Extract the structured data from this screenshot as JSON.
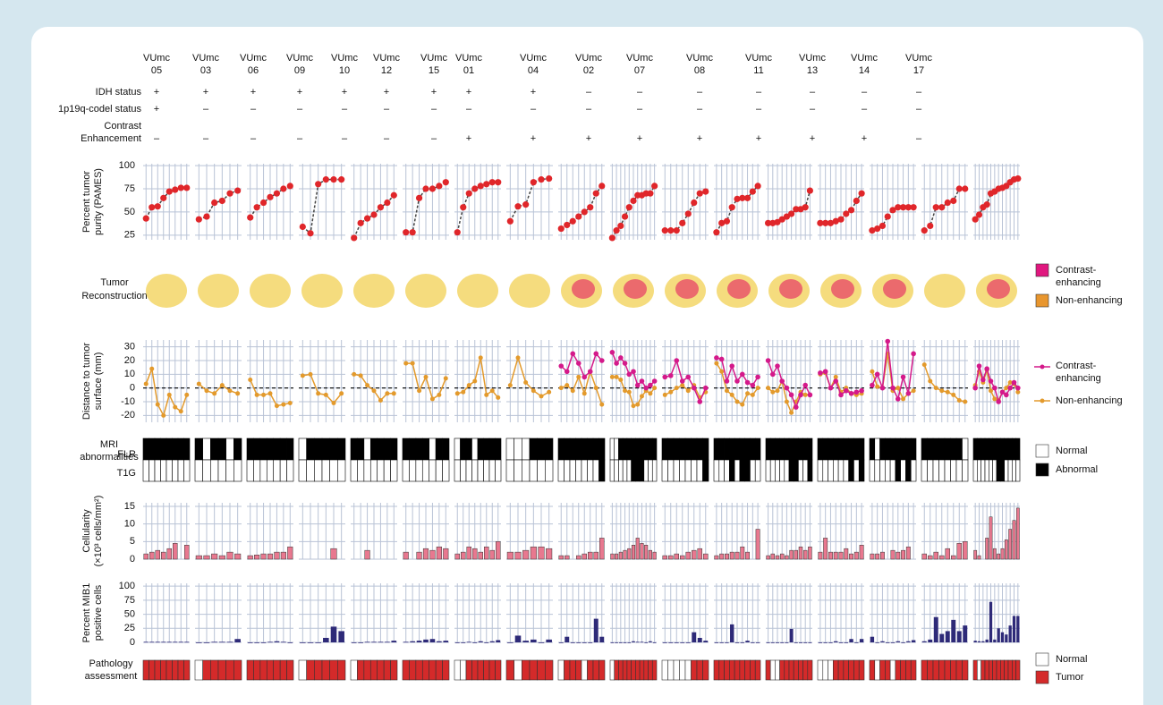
{
  "row_labels": {
    "idh": "IDH status",
    "codel": "1p19q-codel status",
    "ce": [
      "Contrast",
      "Enhancement"
    ],
    "reconstruction": [
      "Tumor",
      "Reconstruction"
    ],
    "mri": [
      "MRI",
      "abnormalities"
    ],
    "flr": "FLR",
    "t1g": "T1G",
    "pathology": [
      "Pathology",
      "assessment"
    ]
  },
  "panels": {
    "purity": {
      "label": [
        "Percent tumor",
        "purity (PAMES)"
      ],
      "ylim": [
        20,
        102
      ],
      "yticks": [
        25,
        50,
        75,
        100
      ]
    },
    "distance": {
      "label": [
        "Distance to tumor",
        "surface (mm)"
      ],
      "ylim": [
        -25,
        35
      ],
      "yticks": [
        -20,
        -10,
        0,
        10,
        20,
        30
      ]
    },
    "cellularity": {
      "label": [
        "Cellularity",
        "(×10³ cells/mm²)"
      ],
      "ylim": [
        0,
        16
      ],
      "yticks": [
        0,
        5,
        10,
        15
      ]
    },
    "mib1": {
      "label": [
        "Percent MIB1",
        "positive cells"
      ],
      "ylim": [
        0,
        105
      ],
      "yticks": [
        0,
        25,
        50,
        75,
        100
      ]
    }
  },
  "legend": {
    "ce": [
      "Contrast-",
      "enhancing"
    ],
    "ne": "Non-enhancing",
    "normal": "Normal",
    "abnormal": "Abnormal",
    "tumor": "Tumor"
  },
  "colors": {
    "purity": "#e0262a",
    "ce": "#d4198a",
    "ne": "#e39a2c",
    "cellularity": "#e8788f",
    "mib1": "#2e2a78",
    "tumor": "#d42a2a",
    "recon_ce": "#e0177f",
    "recon_ne": "#e8962e"
  },
  "patients": [
    {
      "id": [
        "VUmc",
        "05"
      ],
      "idh": "+",
      "codel": "+",
      "ce": "–",
      "purity": [
        43,
        55,
        56,
        65,
        72,
        74,
        76,
        76
      ],
      "distance_ne": [
        3,
        14,
        -12,
        -20,
        -5,
        -14,
        -17,
        -5
      ],
      "distance_ce": null,
      "flr": [
        1,
        1,
        1,
        1,
        1,
        1,
        1,
        1
      ],
      "t1g": [
        0,
        0,
        0,
        0,
        0,
        0,
        0,
        0
      ],
      "cellularity": [
        1.5,
        2,
        2.5,
        2,
        3,
        4.5,
        null,
        4
      ],
      "mib1": [
        1,
        1,
        1,
        1,
        1,
        1,
        1,
        1
      ],
      "pathology": [
        1,
        1,
        1,
        1,
        1,
        1,
        1,
        1
      ]
    },
    {
      "id": [
        "VUmc",
        "03"
      ],
      "idh": "+",
      "codel": "–",
      "ce": "–",
      "purity": [
        42,
        45,
        60,
        62,
        70,
        73
      ],
      "distance_ne": [
        3,
        -2,
        -4,
        2,
        -2,
        -4
      ],
      "distance_ce": null,
      "flr": [
        1,
        0,
        1,
        1,
        0,
        1
      ],
      "t1g": [
        0,
        0,
        0,
        0,
        0,
        0
      ],
      "cellularity": [
        1,
        1,
        1.5,
        1,
        2,
        1.5
      ],
      "mib1": [
        0,
        0,
        1,
        1,
        1,
        6
      ],
      "pathology": [
        0,
        1,
        1,
        1,
        1,
        1
      ]
    },
    {
      "id": [
        "VUmc",
        "06"
      ],
      "idh": "+",
      "codel": "–",
      "ce": "–",
      "purity": [
        44,
        55,
        60,
        66,
        70,
        75,
        78
      ],
      "distance_ne": [
        6,
        -5,
        -5,
        -4,
        -13,
        -12,
        -11
      ],
      "distance_ce": null,
      "flr": [
        1,
        1,
        1,
        1,
        1,
        1,
        1
      ],
      "t1g": [
        0,
        0,
        0,
        0,
        0,
        0,
        0
      ],
      "cellularity": [
        1,
        1.2,
        1.5,
        1.5,
        2,
        2,
        3.5
      ],
      "mib1": [
        0,
        0,
        0,
        1,
        2,
        1,
        0
      ],
      "pathology": [
        1,
        1,
        1,
        1,
        1,
        1,
        1
      ]
    },
    {
      "id": [
        "VUmc",
        "09"
      ],
      "idh": "+",
      "codel": "–",
      "ce": "–",
      "purity": [
        34,
        27,
        80,
        85,
        85,
        85
      ],
      "distance_ne": [
        9,
        10,
        -4,
        -5,
        -11,
        -4
      ],
      "distance_ce": null,
      "flr": [
        0,
        1,
        1,
        1,
        1,
        1
      ],
      "t1g": [
        0,
        0,
        0,
        0,
        0,
        0
      ],
      "cellularity": [
        null,
        null,
        null,
        null,
        3,
        null
      ],
      "mib1": [
        0,
        0,
        0,
        8,
        28,
        20
      ],
      "pathology": [
        0,
        1,
        1,
        1,
        1,
        1
      ]
    },
    {
      "id": [
        "VUmc",
        "10"
      ],
      "idh": "+",
      "codel": "–",
      "ce": "–",
      "purity": [
        22,
        38,
        43,
        47,
        55,
        60,
        68
      ],
      "distance_ne": [
        10,
        9,
        2,
        -2,
        -9,
        -4,
        -4
      ],
      "distance_ce": null,
      "flr": [
        1,
        1,
        0,
        1,
        1,
        1,
        1
      ],
      "t1g": [
        0,
        0,
        0,
        0,
        0,
        0,
        0
      ],
      "cellularity": [
        null,
        null,
        2.5,
        null,
        null,
        null,
        null
      ],
      "mib1": [
        0,
        0,
        1,
        1,
        1,
        1,
        3
      ],
      "pathology": [
        0,
        1,
        1,
        1,
        1,
        1,
        1
      ]
    },
    {
      "id": [
        "VUmc",
        "12"
      ],
      "idh": "+",
      "codel": "–",
      "ce": "–",
      "purity": [
        28,
        28,
        65,
        75,
        75,
        78,
        82
      ],
      "distance_ne": [
        18,
        18,
        -2,
        8,
        -8,
        -5,
        7
      ],
      "distance_ce": null,
      "flr": [
        1,
        1,
        1,
        1,
        0,
        1,
        1
      ],
      "t1g": [
        0,
        0,
        0,
        0,
        0,
        0,
        0
      ],
      "cellularity": [
        2,
        null,
        2,
        3,
        2.5,
        3.5,
        3
      ],
      "mib1": [
        1,
        2,
        3,
        5,
        6,
        2,
        3
      ],
      "pathology": [
        1,
        1,
        1,
        1,
        1,
        1,
        1
      ]
    },
    {
      "id": [
        "VUmc",
        "15"
      ],
      "idh": "+",
      "codel": "–",
      "ce": "–",
      "purity": [
        28,
        55,
        70,
        75,
        78,
        80,
        82,
        82
      ],
      "distance_ne": [
        -4,
        -3,
        2,
        5,
        22,
        -5,
        -2,
        -7
      ],
      "distance_ce": null,
      "flr": [
        0,
        1,
        1,
        0,
        1,
        1,
        1,
        1
      ],
      "t1g": [
        0,
        0,
        0,
        0,
        0,
        0,
        0,
        0
      ],
      "cellularity": [
        1.5,
        2,
        3.5,
        3,
        2,
        3.5,
        2.5,
        5
      ],
      "mib1": [
        0,
        0,
        1,
        0,
        2,
        0,
        2,
        4
      ],
      "pathology": [
        0,
        0,
        1,
        1,
        1,
        1,
        1,
        1
      ]
    },
    {
      "id": [
        "VUmc",
        "01"
      ],
      "idh": "+",
      "codel": "–",
      "ce": "+",
      "purity": [
        40,
        56,
        58,
        82,
        85,
        86
      ],
      "distance_ne": [
        2,
        22,
        4,
        -2,
        -6,
        -3
      ],
      "distance_ce": null,
      "flr": [
        0,
        0,
        0,
        1,
        1,
        1
      ],
      "t1g": [
        0,
        0,
        0,
        0,
        0,
        0
      ],
      "cellularity": [
        2,
        2,
        2.5,
        3.5,
        3.5,
        3
      ],
      "mib1": [
        0,
        12,
        3,
        5,
        0,
        5
      ],
      "pathology": [
        1,
        0,
        1,
        1,
        1,
        1
      ]
    },
    {
      "id": [
        "VUmc",
        "04"
      ],
      "idh": "+",
      "codel": "–",
      "ce": "+",
      "purity": [
        32,
        36,
        40,
        45,
        50,
        55,
        70,
        78
      ],
      "distance_ne": [
        0,
        2,
        -2,
        8,
        -4,
        12,
        0,
        -12
      ],
      "distance_ce": [
        16,
        12,
        25,
        18,
        8,
        12,
        25,
        20
      ],
      "flr": [
        1,
        1,
        1,
        1,
        1,
        1,
        1,
        1
      ],
      "t1g": [
        0,
        0,
        0,
        0,
        0,
        0,
        0,
        1
      ],
      "cellularity": [
        1,
        1,
        null,
        1,
        1.5,
        2,
        2,
        6
      ],
      "mib1": [
        0,
        10,
        0,
        0,
        0,
        0,
        42,
        10
      ],
      "pathology": [
        0,
        1,
        1,
        1,
        0,
        1,
        1,
        1
      ]
    },
    {
      "id": [
        "VUmc",
        "02"
      ],
      "idh": "–",
      "codel": "–",
      "ce": "+",
      "purity": [
        22,
        30,
        35,
        45,
        55,
        62,
        68,
        68,
        70,
        70,
        78
      ],
      "distance_ne": [
        8,
        8,
        6,
        -2,
        -3,
        -13,
        -12,
        -6,
        -2,
        -4,
        0
      ],
      "distance_ce": [
        26,
        18,
        22,
        18,
        10,
        12,
        2,
        5,
        0,
        2,
        5
      ],
      "flr": [
        0,
        0,
        1,
        1,
        1,
        1,
        1,
        1,
        1,
        1,
        1
      ],
      "t1g": [
        0,
        0,
        0,
        0,
        0,
        1,
        1,
        1,
        0,
        0,
        0
      ],
      "cellularity": [
        1.5,
        1.5,
        2,
        2.5,
        3,
        4,
        6,
        4.5,
        4,
        2.5,
        2
      ],
      "mib1": [
        0,
        0,
        0,
        0,
        0,
        2,
        1,
        1,
        0,
        2,
        0
      ],
      "pathology": [
        0,
        1,
        1,
        1,
        1,
        1,
        1,
        1,
        1,
        1,
        1
      ]
    },
    {
      "id": [
        "VUmc",
        "07"
      ],
      "idh": "–",
      "codel": "–",
      "ce": "+",
      "purity": [
        30,
        30,
        30,
        38,
        48,
        60,
        70,
        72
      ],
      "distance_ne": [
        -5,
        -3,
        0,
        2,
        -2,
        2,
        -7,
        -3
      ],
      "distance_ce": [
        8,
        9,
        20,
        5,
        8,
        0,
        -10,
        0
      ],
      "flr": [
        1,
        1,
        1,
        1,
        1,
        1,
        1,
        1
      ],
      "t1g": [
        0,
        0,
        0,
        0,
        0,
        0,
        0,
        1
      ],
      "cellularity": [
        1,
        1,
        1.5,
        1,
        2,
        2.5,
        3,
        1.5
      ],
      "mib1": [
        0,
        0,
        0,
        0,
        0,
        18,
        8,
        3
      ],
      "pathology": [
        0,
        0,
        0,
        0,
        0,
        1,
        1,
        1
      ]
    },
    {
      "id": [
        "VUmc",
        "08"
      ],
      "idh": "–",
      "codel": "–",
      "ce": "+",
      "purity": [
        28,
        38,
        40,
        55,
        64,
        65,
        65,
        72,
        78
      ],
      "distance_ne": [
        18,
        12,
        -2,
        -5,
        -10,
        -12,
        -4,
        -5,
        0
      ],
      "distance_ce": [
        22,
        21,
        5,
        16,
        5,
        10,
        4,
        2,
        8
      ],
      "flr": [
        1,
        1,
        1,
        1,
        1,
        1,
        1,
        1,
        1
      ],
      "t1g": [
        0,
        0,
        0,
        1,
        0,
        1,
        1,
        0,
        0
      ],
      "cellularity": [
        1,
        1.5,
        1.5,
        2,
        2,
        3.5,
        2,
        null,
        8.5
      ],
      "mib1": [
        0,
        0,
        0,
        32,
        0,
        0,
        3,
        0,
        0
      ],
      "pathology": [
        1,
        1,
        1,
        1,
        1,
        1,
        1,
        1,
        1
      ]
    },
    {
      "id": [
        "VUmc",
        "11"
      ],
      "idh": "–",
      "codel": "–",
      "ce": "+",
      "purity": [
        38,
        38,
        39,
        42,
        45,
        48,
        53,
        53,
        55,
        73
      ],
      "distance_ne": [
        0,
        -3,
        -2,
        5,
        -10,
        -18,
        -10,
        -3,
        -5,
        -5
      ],
      "distance_ce": [
        20,
        10,
        16,
        5,
        0,
        -5,
        -14,
        -5,
        2,
        -5
      ],
      "flr": [
        1,
        1,
        1,
        1,
        1,
        1,
        1,
        1,
        1,
        1
      ],
      "t1g": [
        0,
        0,
        0,
        0,
        0,
        1,
        1,
        0,
        0,
        1
      ],
      "cellularity": [
        1,
        1.5,
        1,
        1.5,
        1,
        2.5,
        2.5,
        3.5,
        2.5,
        3.5
      ],
      "mib1": [
        0,
        0,
        0,
        0,
        0,
        24,
        0,
        0,
        0,
        0
      ],
      "pathology": [
        1,
        0,
        0,
        1,
        1,
        1,
        1,
        1,
        1,
        1
      ]
    },
    {
      "id": [
        "VUmc",
        "13"
      ],
      "idh": "–",
      "codel": "–",
      "ce": "+",
      "purity": [
        38,
        38,
        38,
        40,
        42,
        48,
        52,
        62,
        70
      ],
      "distance_ne": [
        10,
        11,
        0,
        8,
        -3,
        0,
        -4,
        -5,
        -4
      ],
      "distance_ce": [
        11,
        12,
        0,
        5,
        -5,
        -2,
        -4,
        -3,
        -2
      ],
      "flr": [
        1,
        1,
        1,
        1,
        1,
        1,
        1,
        1,
        1
      ],
      "t1g": [
        0,
        0,
        0,
        0,
        0,
        0,
        1,
        0,
        1
      ],
      "cellularity": [
        2,
        6,
        2,
        2,
        2,
        3,
        1.5,
        2,
        4
      ],
      "mib1": [
        0,
        0,
        0,
        2,
        0,
        0,
        6,
        0,
        6
      ],
      "pathology": [
        0,
        0,
        0,
        1,
        1,
        1,
        1,
        1,
        1
      ]
    },
    {
      "id": [
        "VUmc",
        "14"
      ],
      "idh": "–",
      "codel": "–",
      "ce": "+",
      "purity": [
        30,
        32,
        35,
        45,
        52,
        55,
        55,
        55,
        55
      ],
      "distance_ne": [
        12,
        1,
        0,
        25,
        -2,
        0,
        -8,
        -4,
        -2
      ],
      "distance_ce": [
        2,
        10,
        0,
        34,
        0,
        -8,
        8,
        -4,
        25
      ],
      "flr": [
        1,
        0,
        1,
        1,
        1,
        1,
        1,
        1,
        1
      ],
      "t1g": [
        0,
        0,
        0,
        0,
        0,
        1,
        0,
        1,
        0
      ],
      "cellularity": [
        1.5,
        1.5,
        2,
        null,
        2.5,
        2,
        2.5,
        3.5,
        null
      ],
      "mib1": [
        10,
        0,
        2,
        0,
        0,
        2,
        0,
        2,
        4
      ],
      "pathology": [
        1,
        0,
        1,
        1,
        0,
        1,
        1,
        1,
        1
      ]
    },
    {
      "id": [
        "VUmc",
        "17"
      ],
      "idh": "–",
      "codel": "–",
      "ce": "–",
      "purity": [
        30,
        35,
        55,
        55,
        60,
        62,
        75,
        75
      ],
      "distance_ne": [
        17,
        5,
        0,
        -2,
        -3,
        -5,
        -9,
        -10
      ],
      "distance_ce": null,
      "flr": [
        1,
        1,
        1,
        1,
        1,
        1,
        1,
        0
      ],
      "t1g": [
        0,
        0,
        0,
        0,
        0,
        0,
        0,
        0
      ],
      "cellularity": [
        1.5,
        1,
        2,
        1,
        3,
        1,
        4.5,
        5
      ],
      "mib1": [
        2,
        5,
        45,
        15,
        20,
        40,
        20,
        30
      ],
      "pathology": [
        1,
        1,
        1,
        1,
        1,
        1,
        1,
        1
      ]
    },
    {
      "purity": [
        42,
        47,
        55,
        58,
        70,
        72,
        75,
        76,
        78,
        82,
        85,
        86
      ],
      "distance_ne": [
        2,
        12,
        4,
        13,
        -2,
        -8,
        -9,
        -3,
        0,
        4,
        3,
        -3
      ],
      "distance_ce": [
        0,
        16,
        6,
        14,
        5,
        0,
        -10,
        -3,
        -5,
        0,
        4,
        0
      ],
      "flr": [
        1,
        1,
        1,
        1,
        1,
        1,
        1,
        1,
        1,
        1,
        1,
        1
      ],
      "t1g": [
        0,
        0,
        0,
        0,
        0,
        0,
        1,
        1,
        0,
        0,
        0,
        0
      ],
      "cellularity": [
        2.5,
        1,
        null,
        6,
        12,
        3,
        1.5,
        3,
        5.5,
        8.5,
        11,
        14.5
      ],
      "mib1": [
        3,
        2,
        2,
        5,
        72,
        5,
        25,
        18,
        14,
        30,
        47,
        47
      ],
      "pathology": [
        1,
        0,
        1,
        1,
        1,
        1,
        1,
        1,
        1,
        1,
        1,
        1
      ]
    }
  ]
}
